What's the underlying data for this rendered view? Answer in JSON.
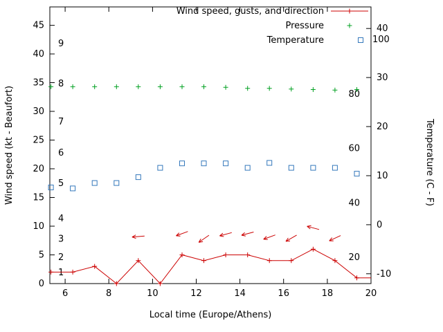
{
  "chart_data": {
    "type": "line",
    "title": "",
    "xlabel": "Local time (Europe/Athens)",
    "x_range": [
      5.3,
      20
    ],
    "x_ticks": [
      6,
      8,
      10,
      12,
      14,
      16,
      18,
      20
    ],
    "left_axis": {
      "label": "Wind speed (kt - Beaufort)",
      "range": [
        0,
        48.2
      ],
      "ticks": [
        0,
        5,
        10,
        15,
        20,
        25,
        30,
        35,
        40,
        45
      ],
      "beaufort_labels": [
        {
          "b": "1",
          "kt": 1.9
        },
        {
          "b": "2",
          "kt": 4.6
        },
        {
          "b": "3",
          "kt": 7.8
        },
        {
          "b": "4",
          "kt": 11.3
        },
        {
          "b": "5",
          "kt": 17.5
        },
        {
          "b": "6",
          "kt": 22.8
        },
        {
          "b": "7",
          "kt": 28.2
        },
        {
          "b": "8",
          "kt": 34.8
        },
        {
          "b": "9",
          "kt": 41.8
        }
      ]
    },
    "right_axis": {
      "label": "Temperature (C - F)",
      "range": [
        -12,
        44.4
      ],
      "ticks": [
        -10,
        0,
        10,
        20,
        30,
        40
      ],
      "fahrenheit_labels": [
        20,
        40,
        60,
        80,
        100
      ]
    },
    "legend": {
      "position": "top-right-inside",
      "entries": [
        "Wind speed, gusts, and direction",
        "Pressure",
        "Temperature"
      ]
    },
    "series": [
      {
        "name": "Wind speed, gusts, and direction",
        "axis": "left",
        "color": "#cc0000",
        "marker": "plus",
        "line": true,
        "x": [
          5.35,
          6.35,
          7.35,
          8.35,
          9.35,
          10.35,
          11.35,
          12.35,
          13.35,
          14.35,
          15.35,
          16.35,
          17.35,
          18.35,
          19.35
        ],
        "y": [
          2,
          2,
          3,
          0,
          4,
          0,
          5,
          4,
          5,
          5,
          4,
          4,
          6,
          4,
          1
        ],
        "extend_to": [
          20,
          1
        ],
        "units": "kt"
      },
      {
        "name": "Pressure",
        "axis": "left",
        "color": "#00a020",
        "marker": "plus",
        "line": false,
        "x": [
          5.35,
          6.35,
          7.35,
          8.35,
          9.35,
          10.35,
          11.35,
          12.35,
          13.35,
          14.35,
          15.35,
          16.35,
          17.35,
          18.35,
          19.35
        ],
        "y": [
          34.3,
          34.3,
          34.3,
          34.3,
          34.3,
          34.3,
          34.3,
          34.3,
          34.2,
          34.0,
          34.0,
          33.9,
          33.8,
          33.7,
          33.8
        ],
        "units": "plotted height on left axis (pressure scale not shown)"
      },
      {
        "name": "Temperature",
        "axis": "right",
        "color": "#3377bb",
        "marker": "square-open",
        "line": false,
        "x": [
          5.35,
          6.35,
          7.35,
          8.35,
          9.35,
          10.35,
          11.35,
          12.35,
          13.35,
          14.35,
          15.35,
          16.35,
          17.35,
          18.35,
          19.35
        ],
        "y": [
          7.6,
          7.4,
          8.5,
          8.5,
          9.7,
          11.6,
          12.5,
          12.5,
          12.5,
          11.6,
          12.6,
          11.6,
          11.6,
          11.6,
          10.4
        ],
        "units": "C"
      }
    ],
    "wind_direction_arrows": [
      {
        "t": 9.35,
        "kt": 8.2,
        "angle_deg": 185
      },
      {
        "t": 11.35,
        "kt": 8.7,
        "angle_deg": 200
      },
      {
        "t": 12.35,
        "kt": 7.8,
        "angle_deg": 215
      },
      {
        "t": 13.35,
        "kt": 8.6,
        "angle_deg": 195
      },
      {
        "t": 14.35,
        "kt": 8.7,
        "angle_deg": 195
      },
      {
        "t": 15.35,
        "kt": 8.1,
        "angle_deg": 200
      },
      {
        "t": 16.35,
        "kt": 7.9,
        "angle_deg": 210
      },
      {
        "t": 17.35,
        "kt": 9.7,
        "angle_deg": 165
      },
      {
        "t": 18.35,
        "kt": 7.9,
        "angle_deg": 205
      }
    ],
    "grid": false,
    "background": "#ffffff",
    "axis_color": "#000000"
  }
}
